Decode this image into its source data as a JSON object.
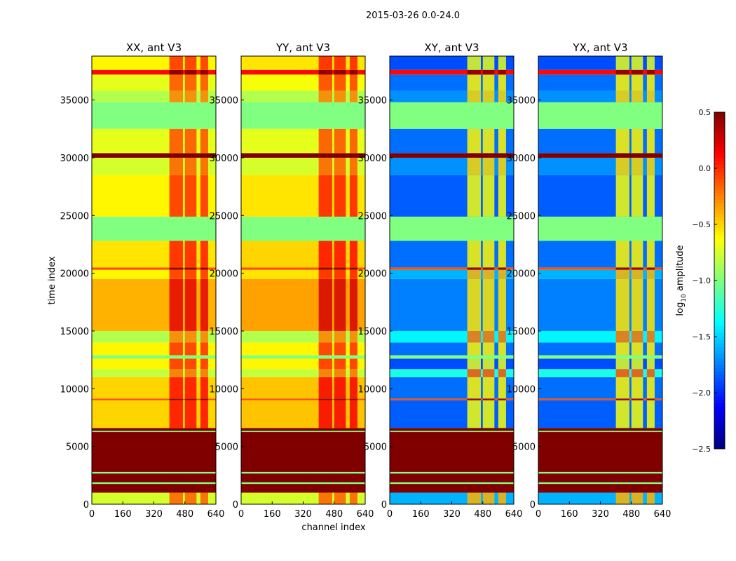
{
  "chart_data": {
    "type": "heatmap",
    "title": "2015-03-26 0.0-24.0",
    "xlabel": "channel index",
    "ylabel": "time index",
    "xlim": [
      0,
      640
    ],
    "ylim": [
      0,
      38800
    ],
    "xticks": [
      "0",
      "160",
      "320",
      "480",
      "640"
    ],
    "yticks": [
      "0",
      "5000",
      "10000",
      "15000",
      "20000",
      "25000",
      "30000",
      "35000"
    ],
    "colorbar": {
      "label": "log10 amplitude",
      "label_main": "log",
      "label_sub": "10",
      "label_rest": " amplitude",
      "range": [
        -2.5,
        0.5
      ],
      "ticks": [
        "0.5",
        "0.0",
        "−0.5",
        "−1.0",
        "−1.5",
        "−2.0",
        "−2.5"
      ],
      "colormap": "jet"
    },
    "hot_channels": [
      [
        400,
        470
      ],
      [
        480,
        540
      ],
      [
        560,
        600
      ]
    ],
    "panels": [
      {
        "title": "XX, ant V3",
        "hot_offset": 0.6,
        "bands": [
          [
            0,
            1000,
            -0.75
          ],
          [
            1000,
            6600,
            0.5
          ],
          [
            1750,
            1900,
            -1.0
          ],
          [
            2650,
            2800,
            -1.0
          ],
          [
            6250,
            6350,
            -1.0
          ],
          [
            6600,
            9000,
            -0.5
          ],
          [
            9000,
            9150,
            -0.1
          ],
          [
            9150,
            11000,
            -0.5
          ],
          [
            11000,
            11700,
            -0.8
          ],
          [
            11700,
            12600,
            -0.6
          ],
          [
            12600,
            12900,
            -1.0
          ],
          [
            12900,
            14000,
            -0.6
          ],
          [
            14000,
            15000,
            -0.85
          ],
          [
            15000,
            19500,
            -0.4
          ],
          [
            19500,
            20300,
            -0.6
          ],
          [
            20300,
            20500,
            -0.1
          ],
          [
            20500,
            22800,
            -0.55
          ],
          [
            22800,
            24900,
            -1.0
          ],
          [
            24900,
            28500,
            -0.6
          ],
          [
            28500,
            30000,
            -0.75
          ],
          [
            30000,
            30400,
            0.5
          ],
          [
            30400,
            32500,
            -0.7
          ],
          [
            32500,
            34800,
            -1.0
          ],
          [
            34800,
            35800,
            -0.85
          ],
          [
            35800,
            37200,
            -0.7
          ],
          [
            37200,
            37600,
            0.1
          ],
          [
            37600,
            38800,
            -0.6
          ]
        ]
      },
      {
        "title": "YY, ant V3",
        "hot_offset": 0.6,
        "bands": [
          [
            0,
            1000,
            -0.75
          ],
          [
            1000,
            6600,
            0.5
          ],
          [
            1750,
            1900,
            -1.0
          ],
          [
            2650,
            2800,
            -1.0
          ],
          [
            6250,
            6350,
            -1.0
          ],
          [
            6600,
            9000,
            -0.45
          ],
          [
            9000,
            9150,
            -0.1
          ],
          [
            9150,
            11000,
            -0.45
          ],
          [
            11000,
            11700,
            -0.8
          ],
          [
            11700,
            12600,
            -0.6
          ],
          [
            12600,
            12900,
            -1.0
          ],
          [
            12900,
            14000,
            -0.6
          ],
          [
            14000,
            15000,
            -0.85
          ],
          [
            15000,
            19500,
            -0.35
          ],
          [
            19500,
            20300,
            -0.55
          ],
          [
            20300,
            20500,
            -0.1
          ],
          [
            20500,
            22800,
            -0.5
          ],
          [
            22800,
            24900,
            -1.0
          ],
          [
            24900,
            28500,
            -0.55
          ],
          [
            28500,
            30000,
            -0.75
          ],
          [
            30000,
            30400,
            0.5
          ],
          [
            30400,
            32500,
            -0.7
          ],
          [
            32500,
            34800,
            -1.0
          ],
          [
            34800,
            35800,
            -0.85
          ],
          [
            35800,
            37200,
            -0.65
          ],
          [
            37200,
            37600,
            0.1
          ],
          [
            37600,
            38800,
            -0.55
          ]
        ]
      },
      {
        "title": "XY, ant V3",
        "hot_offset": 1.2,
        "bands": [
          [
            0,
            1000,
            -1.6
          ],
          [
            1000,
            6600,
            0.5
          ],
          [
            1750,
            1900,
            -1.0
          ],
          [
            2650,
            2800,
            -1.0
          ],
          [
            6250,
            6350,
            -1.0
          ],
          [
            6600,
            9000,
            -1.85
          ],
          [
            9000,
            9150,
            -0.1
          ],
          [
            9150,
            11000,
            -1.8
          ],
          [
            11000,
            11700,
            -1.3
          ],
          [
            11700,
            12600,
            -1.9
          ],
          [
            12600,
            12900,
            -1.0
          ],
          [
            12900,
            14000,
            -1.8
          ],
          [
            14000,
            15000,
            -1.4
          ],
          [
            15000,
            19500,
            -1.75
          ],
          [
            19500,
            20300,
            -1.6
          ],
          [
            20300,
            20500,
            -0.1
          ],
          [
            20500,
            22800,
            -1.8
          ],
          [
            22800,
            24900,
            -1.0
          ],
          [
            24900,
            28500,
            -1.85
          ],
          [
            28500,
            30000,
            -1.7
          ],
          [
            30000,
            30400,
            0.5
          ],
          [
            30400,
            32500,
            -1.8
          ],
          [
            32500,
            34800,
            -1.0
          ],
          [
            34800,
            35800,
            -1.7
          ],
          [
            35800,
            37200,
            -1.8
          ],
          [
            37200,
            37600,
            0.1
          ],
          [
            37600,
            38800,
            -1.9
          ]
        ]
      },
      {
        "title": "YX, ant V3",
        "hot_offset": 1.2,
        "bands": [
          [
            0,
            1000,
            -1.6
          ],
          [
            1000,
            6600,
            0.5
          ],
          [
            1750,
            1900,
            -1.0
          ],
          [
            2650,
            2800,
            -1.0
          ],
          [
            6250,
            6350,
            -1.0
          ],
          [
            6600,
            9000,
            -1.85
          ],
          [
            9000,
            9150,
            -0.1
          ],
          [
            9150,
            11000,
            -1.8
          ],
          [
            11000,
            11700,
            -1.3
          ],
          [
            11700,
            12600,
            -1.9
          ],
          [
            12600,
            12900,
            -1.0
          ],
          [
            12900,
            14000,
            -1.8
          ],
          [
            14000,
            15000,
            -1.4
          ],
          [
            15000,
            19500,
            -1.75
          ],
          [
            19500,
            20300,
            -1.6
          ],
          [
            20300,
            20500,
            -0.1
          ],
          [
            20500,
            22800,
            -1.8
          ],
          [
            22800,
            24900,
            -1.0
          ],
          [
            24900,
            28500,
            -1.85
          ],
          [
            28500,
            30000,
            -1.7
          ],
          [
            30000,
            30400,
            0.5
          ],
          [
            30400,
            32500,
            -1.8
          ],
          [
            32500,
            34800,
            -1.0
          ],
          [
            34800,
            35800,
            -1.7
          ],
          [
            35800,
            37200,
            -1.8
          ],
          [
            37200,
            37600,
            0.1
          ],
          [
            37600,
            38800,
            -1.9
          ]
        ]
      }
    ]
  }
}
